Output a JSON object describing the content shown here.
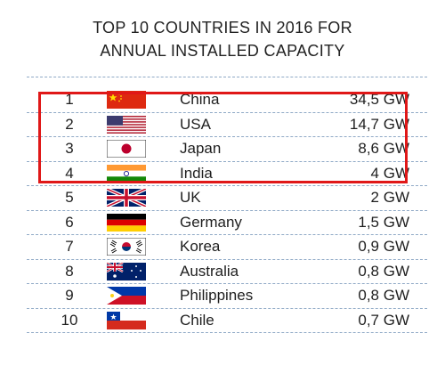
{
  "title_lines": [
    "TOP 10 COUNTRIES IN 2016 FOR",
    "ANNUAL INSTALLED CAPACITY"
  ],
  "chart_data": {
    "type": "table",
    "title": "TOP 10 COUNTRIES IN 2016 FOR ANNUAL INSTALLED CAPACITY",
    "columns": [
      "rank",
      "flag",
      "country",
      "capacity"
    ],
    "rows": [
      {
        "rank": "1",
        "flag": "china-flag-icon",
        "country": "China",
        "capacity": "34,5 GW",
        "value_gw": 34.5
      },
      {
        "rank": "2",
        "flag": "usa-flag-icon",
        "country": "USA",
        "capacity": "14,7 GW",
        "value_gw": 14.7
      },
      {
        "rank": "3",
        "flag": "japan-flag-icon",
        "country": "Japan",
        "capacity": "8,6 GW",
        "value_gw": 8.6
      },
      {
        "rank": "4",
        "flag": "india-flag-icon",
        "country": "India",
        "capacity": "4 GW",
        "value_gw": 4
      },
      {
        "rank": "5",
        "flag": "uk-flag-icon",
        "country": "UK",
        "capacity": "2 GW",
        "value_gw": 2
      },
      {
        "rank": "6",
        "flag": "germany-flag-icon",
        "country": "Germany",
        "capacity": "1,5 GW",
        "value_gw": 1.5
      },
      {
        "rank": "7",
        "flag": "korea-flag-icon",
        "country": "Korea",
        "capacity": "0,9 GW",
        "value_gw": 0.9
      },
      {
        "rank": "8",
        "flag": "australia-flag-icon",
        "country": "Australia",
        "capacity": "0,8 GW",
        "value_gw": 0.8
      },
      {
        "rank": "9",
        "flag": "philippines-flag-icon",
        "country": "Philippines",
        "capacity": "0,8 GW",
        "value_gw": 0.8
      },
      {
        "rank": "10",
        "flag": "chile-flag-icon",
        "country": "Chile",
        "capacity": "0,7 GW",
        "value_gw": 0.7
      }
    ],
    "highlighted_ranks": [
      "1",
      "2",
      "3"
    ],
    "highlight_color": "#e01818",
    "rule_color": "#8fa9c6"
  }
}
